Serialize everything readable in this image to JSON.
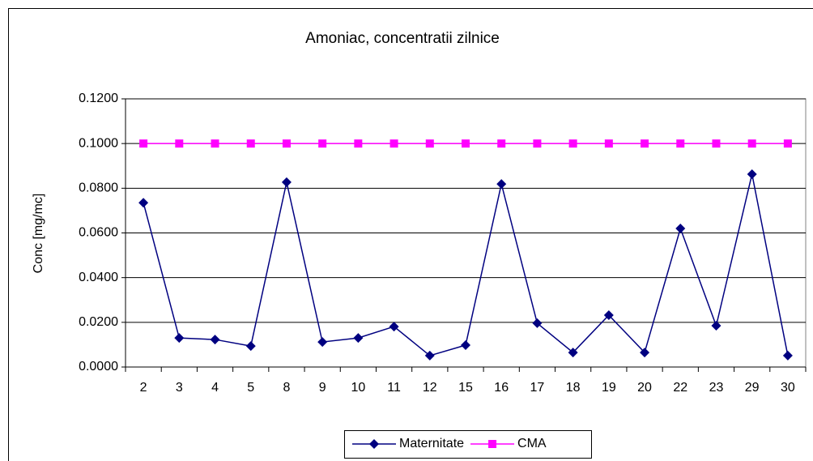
{
  "chart_data": {
    "type": "line",
    "title": "Amoniac, concentratii zilnice",
    "y_label": "Conc [mg/mc]",
    "categories": [
      "2",
      "3",
      "4",
      "5",
      "8",
      "9",
      "10",
      "11",
      "12",
      "15",
      "16",
      "17",
      "18",
      "19",
      "20",
      "22",
      "23",
      "29",
      "30"
    ],
    "series": [
      {
        "name": "Maternitate",
        "color": "#000080",
        "marker": "diamond",
        "values": [
          0.0735,
          0.013,
          0.0123,
          0.0094,
          0.0827,
          0.0112,
          0.013,
          0.0181,
          0.0051,
          0.0098,
          0.0819,
          0.0196,
          0.0065,
          0.0232,
          0.0065,
          0.062,
          0.0185,
          0.0863,
          0.0051
        ]
      },
      {
        "name": "CMA",
        "color": "#ff00ff",
        "marker": "square",
        "values": [
          0.1,
          0.1,
          0.1,
          0.1,
          0.1,
          0.1,
          0.1,
          0.1,
          0.1,
          0.1,
          0.1,
          0.1,
          0.1,
          0.1,
          0.1,
          0.1,
          0.1,
          0.1,
          0.1
        ]
      }
    ],
    "ylim": [
      0,
      0.12
    ],
    "yticks": [
      {
        "value": 0,
        "label": "0.0000"
      },
      {
        "value": 0.02,
        "label": "0.0200"
      },
      {
        "value": 0.04,
        "label": "0.0400"
      },
      {
        "value": 0.06,
        "label": "0.0600"
      },
      {
        "value": 0.08,
        "label": "0.0800"
      },
      {
        "value": 0.1,
        "label": "0.1000"
      },
      {
        "value": 0.12,
        "label": "0.1200"
      }
    ],
    "grid": true,
    "legend": "bottom"
  }
}
